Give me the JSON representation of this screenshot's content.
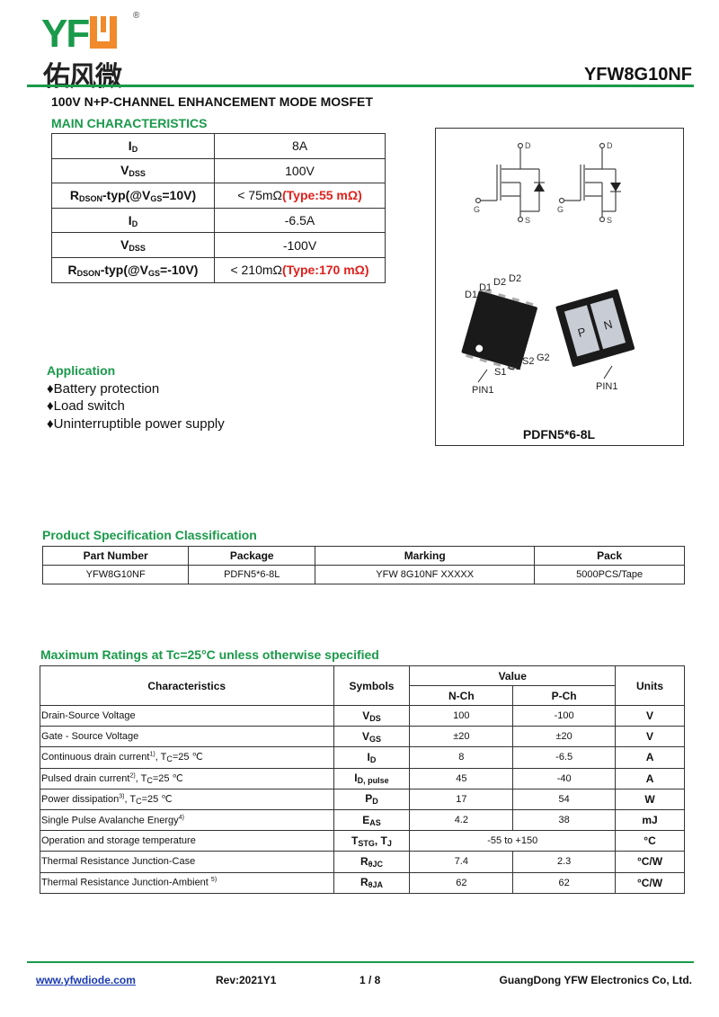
{
  "header": {
    "logo_text": "YFW",
    "logo_cn": "佑风微",
    "registered": "®",
    "part_number": "YFW8G10NF"
  },
  "subtitle": "100V N+P-CHANNEL ENHANCEMENT MODE  MOSFET",
  "main_characteristics": {
    "heading": "MAIN CHARACTERISTICS",
    "rows": [
      {
        "param": "I",
        "sub": "D",
        "value": "8A",
        "typ": ""
      },
      {
        "param": "V",
        "sub": "DSS",
        "value": "100V",
        "typ": ""
      },
      {
        "param": "R",
        "sub": "DSON",
        "suffix": "-typ(@V",
        "sub2": "GS",
        "suffix2": "=10V)",
        "value": "< 75mΩ",
        "typ": "(Type:55 mΩ)"
      },
      {
        "param": "I",
        "sub": "D",
        "value": "-6.5A",
        "typ": ""
      },
      {
        "param": "V",
        "sub": "DSS",
        "value": "-100V",
        "typ": ""
      },
      {
        "param": "R",
        "sub": "DSON",
        "suffix": "-typ(@V",
        "sub2": "GS",
        "suffix2": "=-10V)",
        "value": "< 210mΩ",
        "typ": "(Type:170 mΩ)"
      }
    ]
  },
  "package_figure": {
    "pins_top": [
      "D1",
      "D1",
      "D2",
      "D2"
    ],
    "pins_bottom": [
      "S1",
      "G1",
      "S2",
      "G2"
    ],
    "pin1": "PIN1",
    "pad_labels": [
      "P",
      "N"
    ],
    "terminals": [
      "D",
      "G",
      "S"
    ],
    "caption": "PDFN5*6-8L"
  },
  "application": {
    "heading": "Application",
    "bullet": "♦",
    "items": [
      "Battery protection",
      "Load switch",
      "Uninterruptible power supply"
    ]
  },
  "product_spec": {
    "heading": "Product Specification Classification",
    "columns": [
      "Part Number",
      "Package",
      "Marking",
      "Pack"
    ],
    "row": [
      "YFW8G10NF",
      "PDFN5*6-8L",
      "YFW 8G10NF  XXXXX",
      "5000PCS/Tape"
    ]
  },
  "max_ratings": {
    "heading": "Maximum Ratings at Tc=25°C unless otherwise specified",
    "col_char": "Characteristics",
    "col_sym": "Symbols",
    "col_value": "Value",
    "col_n": "N-Ch",
    "col_p": "P-Ch",
    "col_units": "Units",
    "rows": [
      {
        "name": "Drain-Source Voltage",
        "sup": "",
        "cond": "",
        "sym": "V",
        "sub": "DS",
        "n": "100",
        "p": "-100",
        "unit": "V"
      },
      {
        "name": "Gate - Source Voltage",
        "sup": "",
        "cond": "",
        "sym": "V",
        "sub": "GS",
        "n": "±20",
        "p": "±20",
        "unit": "V"
      },
      {
        "name": "Continuous drain current",
        "sup": "1)",
        "cond": ", T",
        "csub": "C",
        "cond2": "=25 ℃",
        "sym": "I",
        "sub": "D",
        "n": "8",
        "p": "-6.5",
        "unit": "A"
      },
      {
        "name": "Pulsed drain current",
        "sup": "2)",
        "cond": ", T",
        "csub": "C",
        "cond2": "=25 ℃",
        "sym": "I",
        "sub": "D, pulse",
        "n": "45",
        "p": "-40",
        "unit": "A"
      },
      {
        "name": "Power dissipation",
        "sup": "3)",
        "cond": ", T",
        "csub": "C",
        "cond2": "=25 ℃",
        "sym": "P",
        "sub": "D",
        "n": "17",
        "p": "54",
        "unit": "W"
      },
      {
        "name": "Single Pulse Avalanche Energy",
        "sup": "4)",
        "cond": "",
        "sym": "E",
        "sub": "AS",
        "n": "4.2",
        "p": "38",
        "unit": "mJ"
      },
      {
        "name": "Operation and storage temperature",
        "sup": "",
        "cond": "",
        "sym": "T",
        "sub": "STG",
        "sym2": ", T",
        "sub2": "J",
        "both": "-55 to +150",
        "unit": "°C"
      },
      {
        "name": "Thermal Resistance Junction-Case",
        "sup": "",
        "cond": "",
        "sym": "R",
        "sub": "θJC",
        "n": "7.4",
        "p": "2.3",
        "unit": "°C/W"
      },
      {
        "name": "Thermal Resistance Junction-Ambient ",
        "sup": "5)",
        "cond": "",
        "sym": "R",
        "sub": "θJA",
        "n": "62",
        "p": "62",
        "unit": "°C/W"
      }
    ]
  },
  "footer": {
    "website": "www.yfwdiode.com",
    "rev": "Rev:2021Y1",
    "page": "1 / 8",
    "company": "GuangDong YFW Electronics Co, Ltd."
  },
  "colors": {
    "brand_green": "#1a9a4a",
    "brand_orange": "#f08a2c",
    "highlight_red": "#e0201c"
  }
}
